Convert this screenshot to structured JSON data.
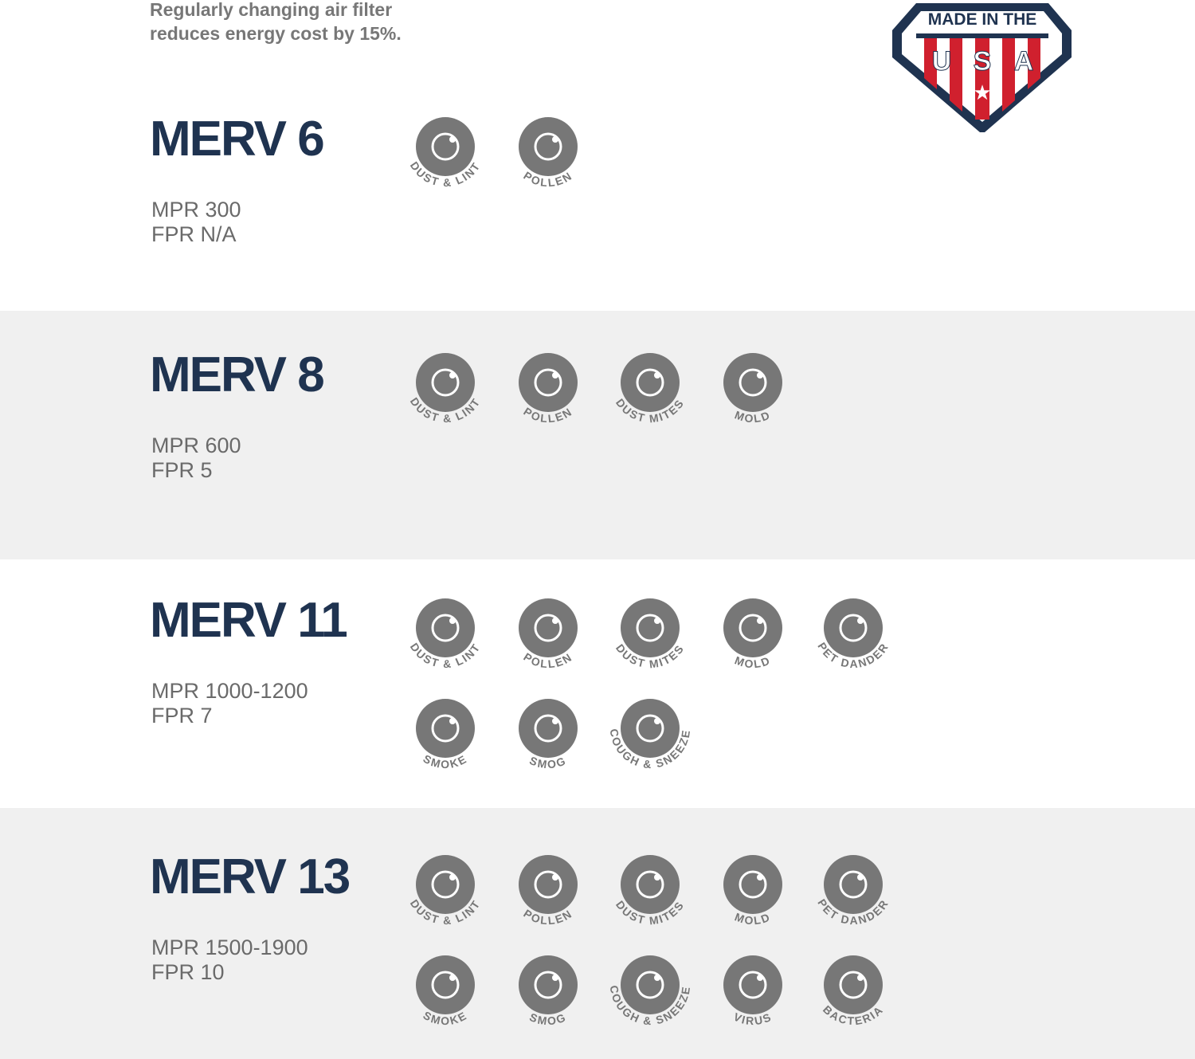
{
  "header": {
    "note": [
      "Regularly changing air filter",
      "reduces energy cost by 15%."
    ]
  },
  "badge": {
    "top": "MADE IN THE",
    "letters": [
      "U",
      "S",
      "A"
    ]
  },
  "sections": [
    {
      "title": "MERV 6",
      "mpr": "MPR 300",
      "fpr": "FPR N/A",
      "icons": [
        "DUST & LINT",
        "POLLEN"
      ]
    },
    {
      "title": "MERV 8",
      "mpr": "MPR 600",
      "fpr": "FPR 5",
      "icons": [
        "DUST & LINT",
        "POLLEN",
        "DUST MITES",
        "MOLD"
      ]
    },
    {
      "title": "MERV 11",
      "mpr": "MPR 1000-1200",
      "fpr": "FPR 7",
      "icons": [
        "DUST & LINT",
        "POLLEN",
        "DUST MITES",
        "MOLD",
        "PET DANDER",
        "SMOKE",
        "SMOG",
        "COUGH & SNEEZE"
      ]
    },
    {
      "title": "MERV 13",
      "mpr": "MPR 1500-1900",
      "fpr": "FPR 10",
      "icons": [
        "DUST & LINT",
        "POLLEN",
        "DUST MITES",
        "MOLD",
        "PET DANDER",
        "SMOKE",
        "SMOG",
        "COUGH & SNEEZE",
        "VIRUS",
        "BACTERIA"
      ]
    }
  ]
}
